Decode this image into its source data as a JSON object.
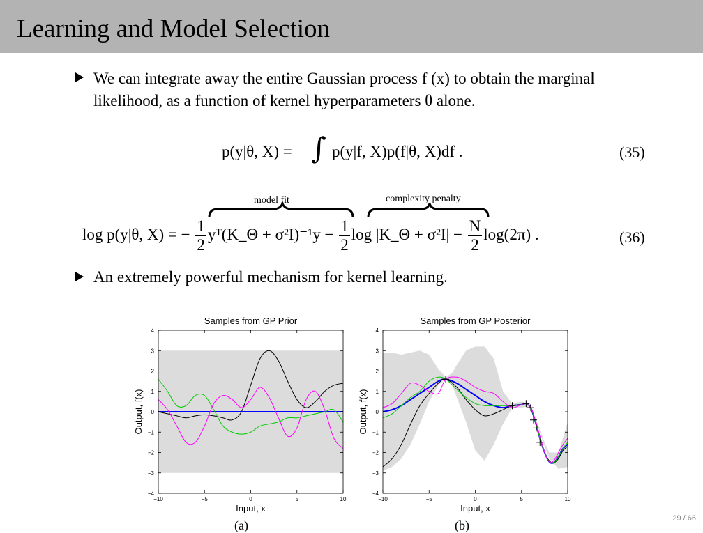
{
  "slide": {
    "title": "Learning and Model Selection",
    "page_number": "29 / 66"
  },
  "bullets": [
    {
      "text_line1": "We can integrate away the entire Gaussian process f (x) to obtain the marginal",
      "text_line2": "likelihood, as a function of kernel hyperparameters θ alone."
    },
    {
      "text_line1": "An extremely powerful mechanism for kernel learning."
    }
  ],
  "equations": {
    "eq35": {
      "lhs": "p(y|θ, X) =",
      "rhs": "p(y|f, X)p(f|θ, X)df .",
      "number": "(35)"
    },
    "eq36": {
      "lhs": "log p(y|θ, X) = −",
      "frac1_num": "1",
      "frac1_den": "2",
      "term1": "yᵀ(K_Θ + σ²I)⁻¹y −",
      "frac2_num": "1",
      "frac2_den": "2",
      "term2": "log |K_Θ + σ²I| −",
      "frac3_num": "N",
      "frac3_den": "2",
      "term3": "log(2π) .",
      "number": "(36)",
      "brace1_label": "model fit",
      "brace2_label": "complexity penalty"
    }
  },
  "captions": {
    "left": "(a)",
    "right": "(b)"
  },
  "chart_data": [
    {
      "type": "line",
      "title": "Samples from GP Prior",
      "xlabel": "Input, x",
      "ylabel": "Output, f(x)",
      "xlim": [
        -10,
        10
      ],
      "ylim": [
        -4,
        4
      ],
      "xticks": [
        "−10",
        "−5",
        "0",
        "5",
        "10"
      ],
      "yticks": [
        "−4",
        "−3",
        "−2",
        "−1",
        "0",
        "1",
        "2",
        "3",
        "4"
      ],
      "band": {
        "lower": -3,
        "upper": 3,
        "color": "#dcdcdc"
      },
      "series": [
        {
          "color": "#0000ff",
          "x": [
            -10,
            10
          ],
          "y": [
            0,
            0
          ]
        },
        {
          "color": "#000000",
          "x": [
            -10,
            -9,
            -8,
            -7,
            -6,
            -5,
            -4,
            -3,
            -2,
            -1,
            0,
            1,
            2,
            3,
            4,
            5,
            6,
            7,
            8,
            9,
            10
          ],
          "y": [
            0.0,
            -0.1,
            -0.2,
            -0.3,
            -0.2,
            -0.15,
            -0.2,
            -0.3,
            -0.4,
            0.0,
            1.3,
            2.6,
            3.0,
            2.5,
            1.5,
            0.6,
            0.2,
            0.5,
            1.0,
            1.3,
            1.4
          ]
        },
        {
          "color": "#00cc00",
          "x": [
            -10,
            -9,
            -8,
            -7,
            -6,
            -5,
            -4,
            -3,
            -2,
            -1,
            0,
            1,
            2,
            3,
            4,
            5,
            6,
            7,
            8,
            9,
            10
          ],
          "y": [
            1.6,
            1.0,
            0.3,
            0.3,
            0.8,
            0.8,
            0.1,
            -0.7,
            -1.0,
            -1.1,
            -1.0,
            -0.7,
            -0.6,
            -0.5,
            -0.3,
            -0.3,
            -0.2,
            -0.1,
            0.0,
            0.1,
            -0.5
          ]
        },
        {
          "color": "#ff00ff",
          "x": [
            -10,
            -9,
            -8,
            -7,
            -6,
            -5,
            -4,
            -3,
            -2,
            -1,
            0,
            1,
            2,
            3,
            4,
            5,
            6,
            7,
            8,
            9,
            10
          ],
          "y": [
            0.6,
            0.1,
            -0.7,
            -1.5,
            -1.5,
            -0.7,
            0.4,
            0.8,
            0.6,
            0.2,
            0.6,
            1.2,
            0.7,
            -0.3,
            -1.2,
            -0.8,
            0.6,
            1.0,
            0.1,
            -1.3,
            -1.8
          ]
        }
      ]
    },
    {
      "type": "line",
      "title": "Samples from GP Posterior",
      "xlabel": "Input, x",
      "ylabel": "Output, f(x)",
      "xlim": [
        -10,
        10
      ],
      "ylim": [
        -4,
        4
      ],
      "xticks": [
        "−10",
        "−5",
        "0",
        "5",
        "10"
      ],
      "yticks": [
        "−4",
        "−3",
        "−2",
        "−1",
        "0",
        "1",
        "2",
        "3",
        "4"
      ],
      "band": {
        "x": [
          -10,
          -9,
          -8,
          -7,
          -6,
          -5,
          -4,
          -3.2,
          -2.5,
          -2,
          -1,
          0,
          1,
          2,
          3,
          4,
          5,
          5.5,
          6,
          6.5,
          7,
          7.5,
          8,
          9,
          10
        ],
        "lower": [
          -2.9,
          -2.7,
          -2.3,
          -1.6,
          -0.6,
          0.5,
          1.3,
          1.6,
          1.3,
          0.7,
          -0.5,
          -1.9,
          -2.4,
          -1.6,
          -0.6,
          0.2,
          0.2,
          0.25,
          0.1,
          -0.4,
          -1.0,
          -1.7,
          -2.3,
          -2.8,
          -2.7
        ],
        "upper": [
          2.9,
          2.9,
          2.8,
          2.9,
          3.0,
          2.8,
          2.1,
          1.7,
          1.9,
          2.3,
          3.0,
          3.2,
          3.2,
          2.6,
          1.0,
          0.4,
          0.5,
          0.45,
          0.2,
          -0.3,
          -0.9,
          -1.5,
          -2.0,
          -2.0,
          -0.5
        ],
        "color": "#dcdcdc"
      },
      "observations": {
        "x": [
          -3.2,
          4,
          5.5,
          6,
          6.3,
          6.6,
          7
        ],
        "y": [
          1.6,
          0.3,
          0.4,
          0.2,
          -0.4,
          -0.8,
          -1.5
        ]
      },
      "series": [
        {
          "color": "#0000ff",
          "x": [
            -10,
            -9,
            -8,
            -7,
            -6,
            -5,
            -4,
            -3.2,
            -2,
            -1,
            0,
            1,
            2,
            3,
            4,
            5,
            5.5,
            6,
            6.5,
            7,
            7.5,
            8,
            8.5,
            9,
            9.5,
            10
          ],
          "y": [
            0.0,
            0.1,
            0.3,
            0.6,
            0.9,
            1.2,
            1.5,
            1.6,
            1.4,
            1.1,
            0.8,
            0.5,
            0.3,
            0.2,
            0.3,
            0.35,
            0.4,
            0.2,
            -0.5,
            -1.3,
            -2.0,
            -2.45,
            -2.5,
            -2.2,
            -1.8,
            -1.6
          ]
        },
        {
          "color": "#000000",
          "x": [
            -10,
            -9,
            -8,
            -7,
            -6,
            -5,
            -4,
            -3.2,
            -2,
            -1,
            0,
            1,
            2,
            3,
            4,
            5,
            5.5,
            6,
            6.5,
            7,
            7.5,
            8,
            8.5,
            9,
            9.5,
            10
          ],
          "y": [
            -2.7,
            -2.3,
            -1.6,
            -0.6,
            0.3,
            0.9,
            1.4,
            1.6,
            1.2,
            0.6,
            0.1,
            -0.2,
            -0.1,
            0.1,
            0.3,
            0.35,
            0.4,
            0.2,
            -0.5,
            -1.3,
            -2.0,
            -2.4,
            -2.5,
            -2.3,
            -1.9,
            -1.7
          ]
        },
        {
          "color": "#00cc00",
          "x": [
            -10,
            -9,
            -8,
            -7,
            -6,
            -5,
            -4,
            -3.2,
            -2,
            -1,
            0,
            1,
            2,
            3,
            4,
            5,
            5.5,
            6,
            6.5,
            7,
            7.5,
            8,
            8.5,
            9,
            9.5,
            10
          ],
          "y": [
            -0.3,
            -0.1,
            0.3,
            0.7,
            1.0,
            1.5,
            1.7,
            1.6,
            1.1,
            0.7,
            0.4,
            0.3,
            0.3,
            0.3,
            0.3,
            0.35,
            0.4,
            0.2,
            -0.5,
            -1.3,
            -2.0,
            -2.45,
            -2.5,
            -2.2,
            -1.8,
            -1.5
          ]
        },
        {
          "color": "#ff00ff",
          "x": [
            -10,
            -9,
            -8,
            -7,
            -6,
            -5,
            -4,
            -3.2,
            -2,
            -1,
            0,
            1,
            2,
            3,
            4,
            5,
            5.5,
            6,
            6.5,
            7,
            7.5,
            8,
            8.5,
            9,
            9.5,
            10
          ],
          "y": [
            0.2,
            0.4,
            0.9,
            1.4,
            1.3,
            1.0,
            0.9,
            1.6,
            1.7,
            1.5,
            1.2,
            1.0,
            0.9,
            0.5,
            0.2,
            0.35,
            0.4,
            0.2,
            -0.4,
            -1.2,
            -2.0,
            -2.45,
            -2.4,
            -2.0,
            -1.6,
            -1.3
          ]
        }
      ]
    }
  ]
}
